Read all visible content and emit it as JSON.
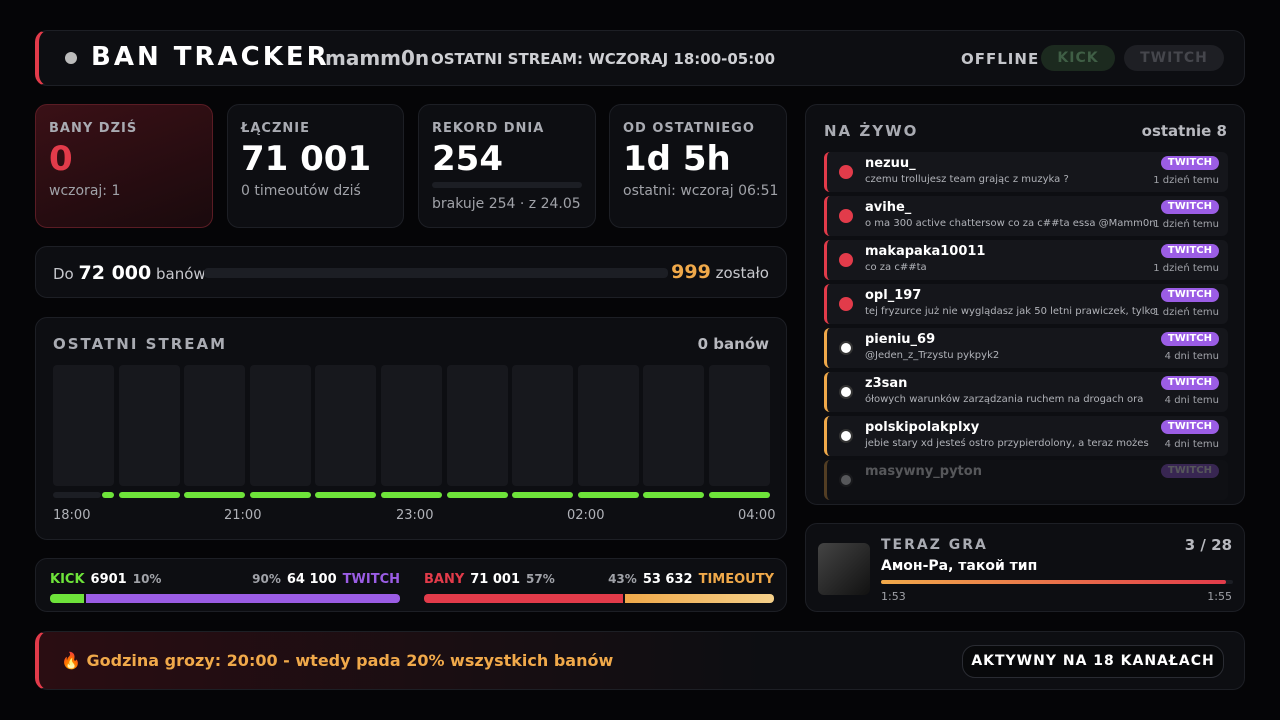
{
  "header": {
    "title": "BAN TRACKER",
    "channel": "mamm0n",
    "last_stream": "OSTATNI STREAM: WCZORAJ 18:00-05:00",
    "status": "OFFLINE",
    "platforms": [
      "KICK",
      "TWITCH"
    ]
  },
  "stats": [
    {
      "label": "BANY DZIŚ",
      "value": "0",
      "sub": "wczoraj: 1"
    },
    {
      "label": "ŁĄCZNIE",
      "value": "71 001",
      "sub": "0 timeoutów dziś"
    },
    {
      "label": "REKORD DNIA",
      "value": "254",
      "sub": "brakuje 254 · z 24.05"
    },
    {
      "label": "OD OSTATNIEGO",
      "value": "1d 5h",
      "sub": "ostatni: wczoraj 06:51"
    }
  ],
  "goal": {
    "prefix": "Do",
    "target": "72 000",
    "suffix": "banów",
    "remaining": "999",
    "remaining_suffix": "zostało"
  },
  "last_stream": {
    "title": "OSTATNI STREAM",
    "count": "0 banów",
    "times": [
      "18:00",
      "21:00",
      "23:00",
      "02:00",
      "04:00"
    ]
  },
  "splits": [
    {
      "left": {
        "name": "KICK",
        "count": "6901",
        "pct": {
          "value": 10,
          "label": "10%"
        }
      },
      "right": {
        "name": "TWITCH",
        "count": "64 100",
        "pct": {
          "value": 90,
          "label": "90%"
        }
      }
    },
    {
      "left": {
        "name": "BANY",
        "count": "71 001",
        "pct": {
          "value": 57,
          "label": "57%"
        }
      },
      "right": {
        "name": "TIMEOUTY",
        "count": "53 632",
        "pct": {
          "value": 43,
          "label": "43%"
        }
      }
    }
  ],
  "live": {
    "title": "NA ŻYWO",
    "subtitle": "ostatnie 8",
    "items": [
      {
        "user": "nezuu_",
        "message": "czemu trollujesz team grając z muzyka ?",
        "platform": "TWITCH",
        "time": "1 dzień temu"
      },
      {
        "user": "avihe_",
        "message": "o ma 300 active chattersow co za c##ta essa @Mamm0n",
        "platform": "TWITCH",
        "time": "1 dzień temu"
      },
      {
        "user": "makapaka10011",
        "message": "co za c##ta",
        "platform": "TWITCH",
        "time": "1 dzień temu"
      },
      {
        "user": "opl_197",
        "message": "tej fryzurce już nie wyglądasz jak 50 letni prawiczek, tylko",
        "platform": "TWITCH",
        "time": "1 dzień temu"
      },
      {
        "user": "pieniu_69",
        "message": "@Jeden_z_Trzystu pykpyk2",
        "platform": "TWITCH",
        "time": "4 dni temu"
      },
      {
        "user": "z3san",
        "message": "ółowych warunków zarządzania ruchem na drogach ora",
        "platform": "TWITCH",
        "time": "4 dni temu"
      },
      {
        "user": "polskipolakplxy",
        "message": "jebie stary xd jesteś ostro przypierdolony, a teraz możes",
        "platform": "TWITCH",
        "time": "4 dni temu"
      },
      {
        "user": "masywny_pyton",
        "platform": "TWITCH"
      }
    ]
  },
  "now_playing": {
    "title": "TERAZ GRA",
    "position": "3 / 28",
    "track": "Амон-Ра, такой тип",
    "elapsed": "1:53",
    "duration": "1:55"
  },
  "footer": {
    "text": "🔥 Godzina grozy: 20:00 - wtedy pada 20% wszystkich banów",
    "badge": "AKTYWNY NA 18 KANAŁACH"
  }
}
